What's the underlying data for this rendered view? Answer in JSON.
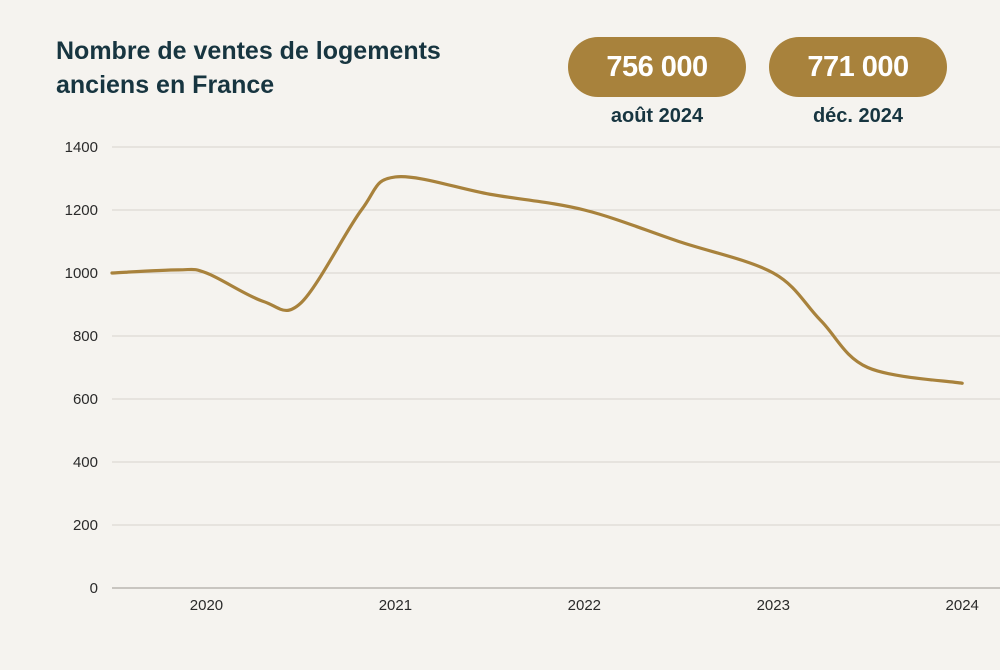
{
  "title": "Nombre de ventes de logements anciens en France",
  "colors": {
    "accent": "#a8823c",
    "title": "#173540",
    "grid": "#d6d3ce"
  },
  "stats": [
    {
      "value": "756 000",
      "label": "août 2024"
    },
    {
      "value": "771 000",
      "label": "déc. 2024"
    }
  ],
  "chart_data": {
    "type": "line",
    "title": "Nombre de ventes de logements anciens en France",
    "xlabel": "",
    "ylabel": "",
    "xlim": [
      2019.5,
      2024.2
    ],
    "ylim": [
      0,
      1400
    ],
    "yticks": [
      0,
      200,
      400,
      600,
      800,
      1000,
      1200,
      1400
    ],
    "xticks": [
      2020,
      2021,
      2022,
      2023,
      2024
    ],
    "grid": true,
    "series": [
      {
        "x": [
          2019.5,
          2019.85,
          2020.0,
          2020.3,
          2020.5,
          2020.82,
          2021.0,
          2021.5,
          2022.0,
          2022.5,
          2023.0,
          2023.25,
          2023.5,
          2024.0
        ],
        "values": [
          1000,
          1010,
          1000,
          910,
          905,
          1200,
          1305,
          1250,
          1200,
          1100,
          1000,
          850,
          700,
          650
        ]
      }
    ]
  }
}
